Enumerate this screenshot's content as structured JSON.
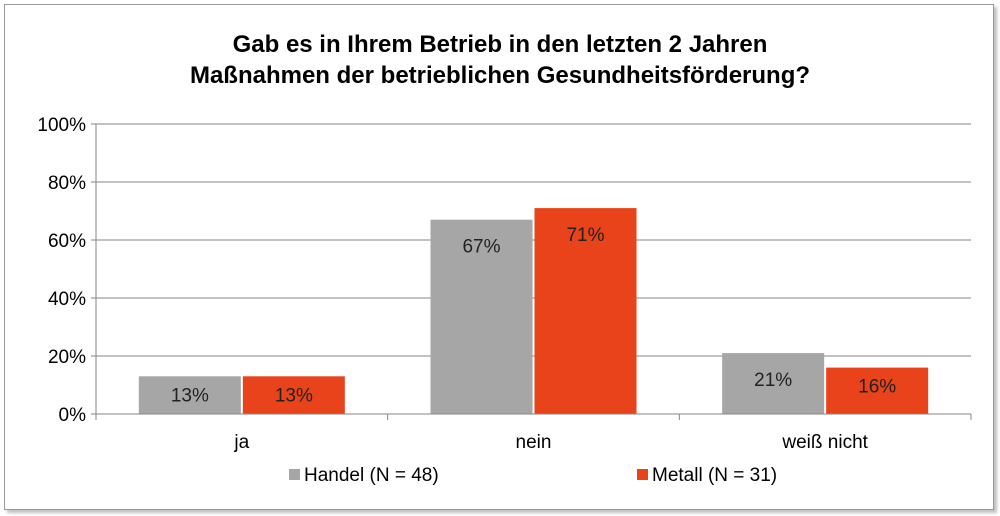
{
  "chart_data": {
    "type": "bar",
    "title": [
      "Gab es in Ihrem Betrieb in den letzten 2 Jahren",
      "Maßnahmen der betrieblichen Gesundheitsförderung?"
    ],
    "categories": [
      "ja",
      "nein",
      "weiß nicht"
    ],
    "series": [
      {
        "name": "Handel (N = 48)",
        "values": [
          13,
          67,
          21
        ],
        "labels": [
          "13%",
          "67%",
          "21%"
        ],
        "color": "#a6a6a6"
      },
      {
        "name": "Metall (N = 31)",
        "values": [
          13,
          71,
          16
        ],
        "labels": [
          "13%",
          "71%",
          "16%"
        ],
        "color": "#e8431a"
      }
    ],
    "ylim": [
      0,
      100
    ],
    "yticks": [
      0,
      20,
      40,
      60,
      80,
      100
    ],
    "ytick_labels": [
      "0%",
      "20%",
      "40%",
      "60%",
      "80%",
      "100%"
    ],
    "grid": true,
    "legend_position": "bottom"
  }
}
